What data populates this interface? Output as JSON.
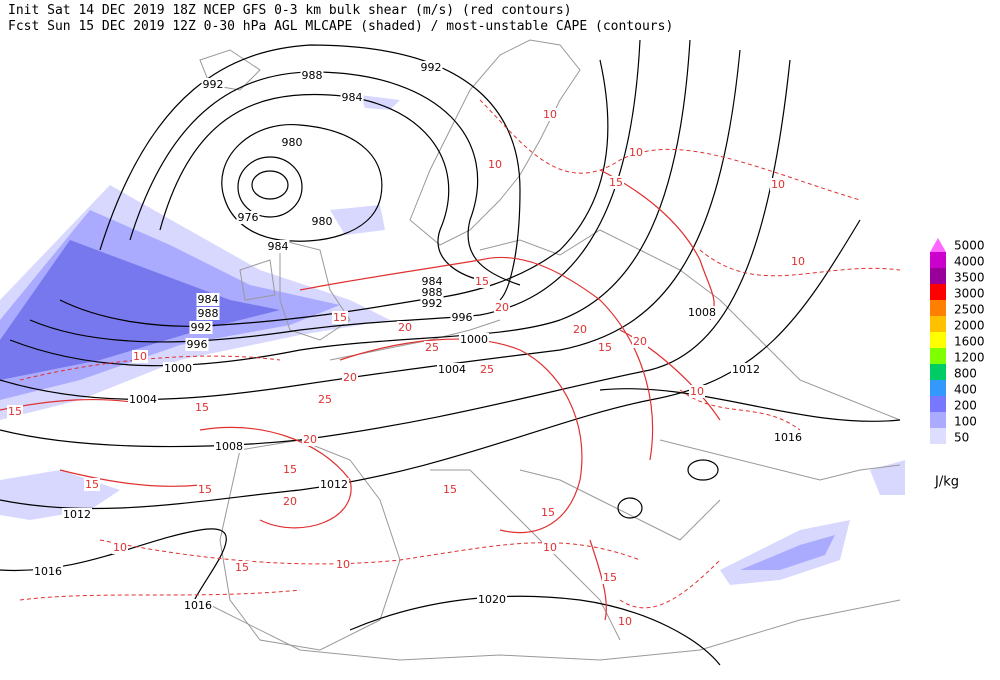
{
  "header": {
    "line1": "Init  Sat 14 DEC 2019 18Z  NCEP GFS 0-3 km bulk shear (m/s) (red contours)",
    "line2": "Fcst Sun 15 DEC 2019 12Z  0-30 hPa AGL MLCAPE (shaded) / most-unstable CAPE (contours)"
  },
  "map": {
    "isobar_labels": [
      992,
      988,
      984,
      992,
      980,
      976,
      980,
      984,
      984,
      988,
      992,
      984,
      988,
      992,
      996,
      996,
      1000,
      1000,
      1004,
      1004,
      1008,
      1008,
      1012,
      1012,
      1012,
      1016,
      1016,
      1016,
      1020
    ],
    "shear_labels": [
      10,
      10,
      10,
      15,
      10,
      10,
      15,
      20,
      20,
      20,
      15,
      25,
      25,
      20,
      25,
      15,
      10,
      15,
      20,
      15,
      15,
      20,
      15,
      15,
      10,
      15,
      10,
      10,
      15,
      10,
      15,
      10,
      20,
      15
    ]
  },
  "legend": {
    "levels": [
      {
        "value": 5000,
        "color": "#ff66ff"
      },
      {
        "value": 4000,
        "color": "#cc00cc"
      },
      {
        "value": 3500,
        "color": "#990099"
      },
      {
        "value": 3000,
        "color": "#ff0000"
      },
      {
        "value": 2500,
        "color": "#ff8000"
      },
      {
        "value": 2000,
        "color": "#ffc000"
      },
      {
        "value": 1600,
        "color": "#ffff00"
      },
      {
        "value": 1200,
        "color": "#80ff00"
      },
      {
        "value": 800,
        "color": "#00cc66"
      },
      {
        "value": 400,
        "color": "#3399ff"
      },
      {
        "value": 200,
        "color": "#7777ff"
      },
      {
        "value": 100,
        "color": "#aaaaff"
      },
      {
        "value": 50,
        "color": "#ddddff"
      }
    ],
    "unit": "J/kg"
  }
}
